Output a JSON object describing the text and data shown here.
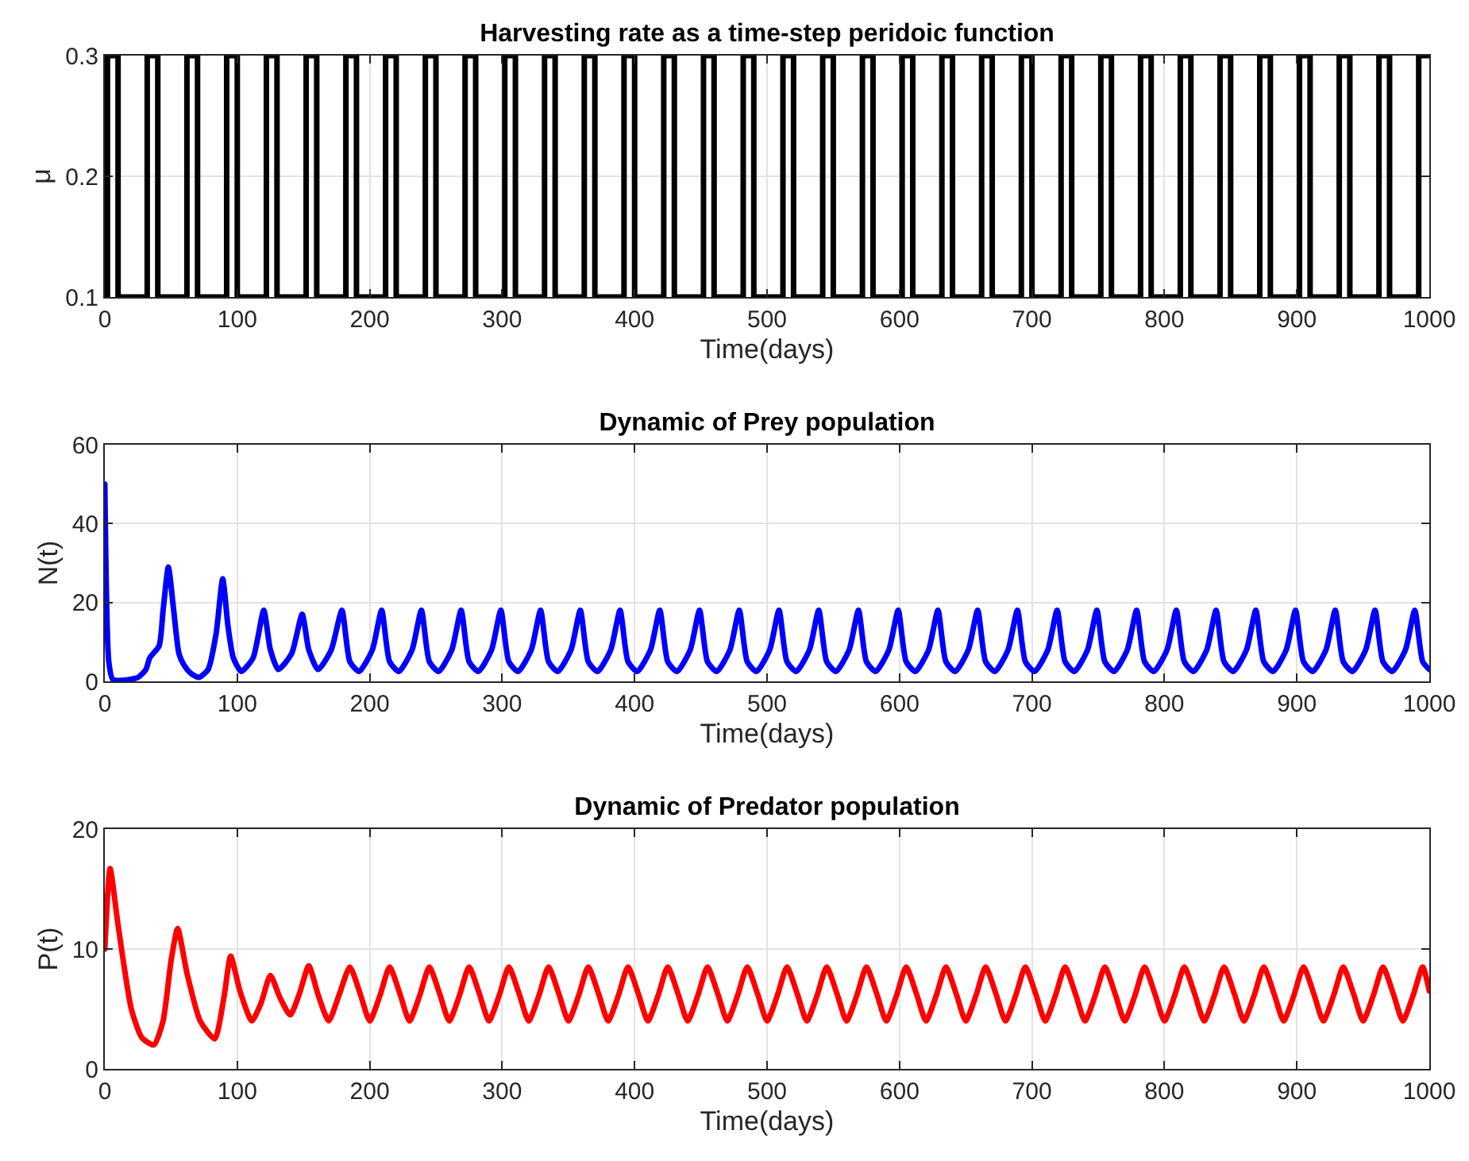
{
  "chart_data": [
    {
      "type": "step",
      "title": "Harvesting rate as a time-step peridoic function",
      "xlabel": "Time(days)",
      "ylabel": "μ",
      "xlim": [
        0,
        1000
      ],
      "xticks": [
        0,
        100,
        200,
        300,
        400,
        500,
        600,
        700,
        800,
        900,
        1000
      ],
      "ylim": [
        0.1,
        0.3
      ],
      "yticks": [
        0.1,
        0.2,
        0.3
      ],
      "grid": true,
      "series": [
        {
          "color": "#000000",
          "x": [
            0,
            2,
            10,
            32,
            40,
            62,
            70,
            92,
            100,
            122,
            130,
            152,
            160,
            182,
            190,
            212,
            220,
            242,
            250,
            272,
            280,
            302,
            310,
            332,
            340,
            362,
            370,
            392,
            400,
            422,
            430,
            452,
            460,
            482,
            490,
            512,
            520,
            542,
            550,
            572,
            580,
            602,
            610,
            632,
            640,
            662,
            670,
            692,
            700,
            722,
            730,
            752,
            760,
            782,
            790,
            812,
            820,
            842,
            850,
            872,
            880,
            902,
            910,
            932,
            940,
            962,
            970,
            992,
            1000
          ],
          "values": [
            0.1,
            0.3,
            0.1,
            0.3,
            0.1,
            0.3,
            0.1,
            0.3,
            0.1,
            0.3,
            0.1,
            0.3,
            0.1,
            0.3,
            0.1,
            0.3,
            0.1,
            0.3,
            0.1,
            0.3,
            0.1,
            0.3,
            0.1,
            0.3,
            0.1,
            0.3,
            0.1,
            0.3,
            0.1,
            0.3,
            0.1,
            0.3,
            0.1,
            0.3,
            0.1,
            0.3,
            0.1,
            0.3,
            0.1,
            0.3,
            0.1,
            0.3,
            0.1,
            0.3,
            0.1,
            0.3,
            0.1,
            0.3,
            0.1,
            0.3,
            0.1,
            0.3,
            0.1,
            0.3,
            0.1,
            0.3,
            0.1,
            0.3,
            0.1,
            0.3,
            0.1,
            0.3,
            0.1,
            0.3,
            0.1,
            0.3,
            0.1,
            0.3,
            0.3
          ]
        }
      ]
    },
    {
      "type": "line",
      "title": "Dynamic of Prey population",
      "xlabel": "Time(days)",
      "ylabel": "N(t)",
      "xlim": [
        0,
        1000
      ],
      "xticks": [
        0,
        100,
        200,
        300,
        400,
        500,
        600,
        700,
        800,
        900,
        1000
      ],
      "ylim": [
        0,
        60
      ],
      "yticks": [
        0,
        20,
        40,
        60
      ],
      "grid": true,
      "series": [
        {
          "color": "#0000ff",
          "x": [
            0,
            3,
            6,
            15,
            25,
            31,
            34,
            41,
            44,
            48,
            52,
            56,
            60,
            65,
            71,
            78,
            84,
            89,
            93,
            97,
            103,
            112,
            120,
            125,
            131,
            141,
            149,
            154,
            161,
            171,
            179,
            185,
            192,
            202,
            209,
            215,
            222,
            232,
            239,
            245,
            252,
            262,
            269,
            275,
            282,
            292,
            299,
            305,
            312,
            322,
            329,
            335,
            342,
            352,
            359,
            365,
            372,
            382,
            389,
            395,
            402,
            412,
            419,
            425,
            432,
            442,
            449,
            455,
            462,
            472,
            479,
            485,
            492,
            502,
            509,
            515,
            522,
            532,
            539,
            545,
            552,
            562,
            569,
            575,
            582,
            592,
            599,
            605,
            612,
            622,
            629,
            635,
            642,
            652,
            659,
            665,
            672,
            682,
            689,
            695,
            702,
            712,
            719,
            725,
            732,
            742,
            749,
            755,
            762,
            772,
            779,
            785,
            792,
            802,
            809,
            815,
            822,
            832,
            839,
            845,
            852,
            862,
            869,
            875,
            882,
            892,
            899,
            905,
            912,
            922,
            929,
            935,
            942,
            952,
            959,
            965,
            972,
            982,
            989,
            995,
            1000
          ],
          "values": [
            50,
            5,
            0.5,
            0.3,
            1,
            3,
            6,
            9,
            18,
            29,
            18,
            7,
            4,
            2,
            1,
            3,
            12,
            26,
            14,
            6,
            2.5,
            6,
            18,
            8,
            3,
            7,
            17,
            8,
            3,
            8,
            18,
            5,
            2.5,
            8,
            18,
            5,
            2.5,
            8,
            18,
            5,
            2.5,
            8,
            18,
            5,
            2.5,
            8,
            18,
            5,
            2.5,
            8,
            18,
            5,
            2.5,
            8,
            18,
            5,
            2.5,
            8,
            18,
            5,
            2.5,
            8,
            18,
            5,
            2.5,
            8,
            18,
            5,
            2.5,
            8,
            18,
            5,
            2.5,
            8,
            18,
            5,
            2.5,
            8,
            18,
            5,
            2.5,
            8,
            18,
            5,
            2.5,
            8,
            18,
            5,
            2.5,
            8,
            18,
            5,
            2.5,
            8,
            18,
            5,
            2.5,
            8,
            18,
            5,
            2.5,
            8,
            18,
            5,
            2.5,
            8,
            18,
            5,
            2.5,
            8,
            18,
            5,
            2.5,
            8,
            18,
            5,
            2.5,
            8,
            18,
            5,
            2.5,
            8,
            18,
            5,
            2.5,
            8,
            18,
            5,
            2.5,
            8,
            18,
            5,
            2.5,
            8,
            18,
            5,
            2.5,
            8,
            18,
            5,
            3
          ]
        }
      ]
    },
    {
      "type": "line",
      "title": "Dynamic of Predator population",
      "xlabel": "Time(days)",
      "ylabel": "P(t)",
      "xlim": [
        0,
        1000
      ],
      "xticks": [
        0,
        100,
        200,
        300,
        400,
        500,
        600,
        700,
        800,
        900,
        1000
      ],
      "ylim": [
        0,
        20
      ],
      "yticks": [
        0,
        10,
        20
      ],
      "grid": true,
      "series": [
        {
          "color": "#ff0000",
          "x": [
            0,
            4,
            10,
            20,
            28,
            37,
            44,
            50,
            55,
            62,
            72,
            83,
            90,
            95,
            102,
            111,
            118,
            125,
            132,
            140,
            147,
            154,
            161,
            169,
            177,
            185,
            193,
            200,
            208,
            215,
            223,
            230,
            238,
            245,
            253,
            260,
            268,
            275,
            283,
            290,
            298,
            305,
            313,
            320,
            328,
            335,
            343,
            350,
            358,
            365,
            373,
            380,
            388,
            395,
            403,
            410,
            418,
            425,
            433,
            440,
            448,
            455,
            463,
            470,
            478,
            485,
            493,
            500,
            508,
            515,
            523,
            530,
            538,
            545,
            553,
            560,
            568,
            575,
            583,
            590,
            598,
            605,
            613,
            620,
            628,
            635,
            643,
            650,
            658,
            665,
            673,
            680,
            688,
            695,
            703,
            710,
            718,
            725,
            733,
            740,
            748,
            755,
            763,
            770,
            778,
            785,
            793,
            800,
            808,
            815,
            823,
            830,
            838,
            845,
            853,
            860,
            868,
            875,
            883,
            890,
            898,
            905,
            913,
            920,
            928,
            935,
            943,
            950,
            958,
            965,
            973,
            980,
            988,
            995,
            1000
          ],
          "values": [
            10,
            16.7,
            12,
            5,
            2.6,
            2,
            4,
            9,
            11.7,
            8,
            4,
            2.5,
            6,
            9.4,
            6.5,
            4,
            5.5,
            7.8,
            6,
            4.5,
            6.3,
            8.6,
            6.2,
            4,
            6.2,
            8.5,
            6.2,
            4,
            6.2,
            8.5,
            6.2,
            4,
            6.2,
            8.5,
            6.2,
            4,
            6.2,
            8.5,
            6.2,
            4,
            6.2,
            8.5,
            6.2,
            4,
            6.2,
            8.5,
            6.2,
            4,
            6.2,
            8.5,
            6.2,
            4,
            6.2,
            8.5,
            6.2,
            4,
            6.2,
            8.5,
            6.2,
            4,
            6.2,
            8.5,
            6.2,
            4,
            6.2,
            8.5,
            6.2,
            4,
            6.2,
            8.5,
            6.2,
            4,
            6.2,
            8.5,
            6.2,
            4,
            6.2,
            8.5,
            6.2,
            4,
            6.2,
            8.5,
            6.2,
            4,
            6.2,
            8.5,
            6.2,
            4,
            6.2,
            8.5,
            6.2,
            4,
            6.2,
            8.5,
            6.2,
            4,
            6.2,
            8.5,
            6.2,
            4,
            6.2,
            8.5,
            6.2,
            4,
            6.2,
            8.5,
            6.2,
            4,
            6.2,
            8.5,
            6.2,
            4,
            6.2,
            8.5,
            6.2,
            4,
            6.2,
            8.5,
            6.2,
            4,
            6.2,
            8.5,
            6.2,
            4,
            6.2,
            8.5,
            6.2,
            4,
            6.2,
            8.5,
            6.2,
            4,
            6.2,
            8.5,
            6.5
          ]
        }
      ]
    }
  ]
}
